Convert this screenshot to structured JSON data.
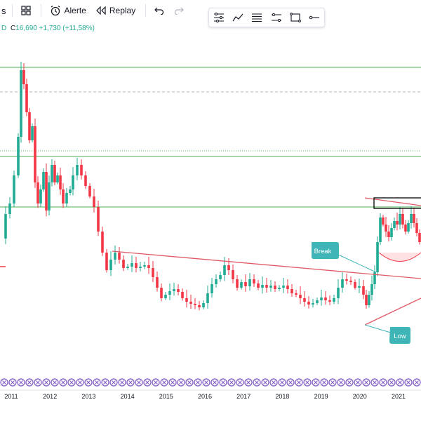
{
  "toolbar": {
    "left_glyph": "s",
    "alerts_label": "Alerte",
    "replay_label": "Replay",
    "icons": [
      "indicator-templates-icon",
      "alarm-clock-icon",
      "replay-icon",
      "undo-icon",
      "redo-icon"
    ]
  },
  "quote": {
    "marker": "D",
    "close_label": "C",
    "close": "16,690",
    "change": "+1,730 (+11,58%)"
  },
  "drawing_toolbar": {
    "icons": [
      "settings-lines-icon",
      "trend-line-icon",
      "horizontal-lines-icon",
      "channel-icon",
      "rectangle-icon",
      "line-tool-icon"
    ]
  },
  "annotations": {
    "break_label": "Break",
    "low_label": "Low"
  },
  "colors": {
    "up": "#22ab94",
    "down": "#f23645",
    "level_line": "#4caf50",
    "trend_line": "#e05a66",
    "callout": "#3fb5b7",
    "event_marker": "#7e57c2"
  },
  "chart_data": {
    "type": "candlestick",
    "title": "",
    "x_axis": {
      "tick_labels": [
        "2011",
        "2012",
        "2013",
        "2014",
        "2015",
        "2016",
        "2017",
        "2018",
        "2019",
        "2020",
        "2021"
      ]
    },
    "y_axis": {
      "visible_labels": false
    },
    "last": {
      "close": 16.69,
      "change": 1.73,
      "change_pct": 11.58
    },
    "annotations": [
      {
        "text": "Break",
        "at": "2020"
      },
      {
        "text": "Low",
        "at": "2020"
      }
    ],
    "event_markers": 50
  }
}
